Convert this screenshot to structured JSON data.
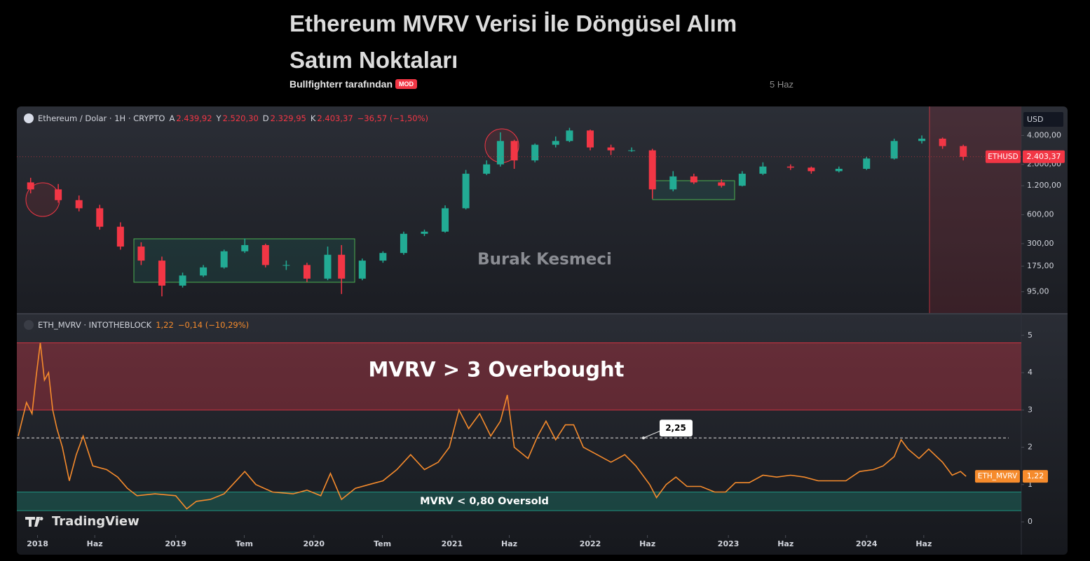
{
  "header": {
    "title": "Ethereum MVRV Verisi İle Döngüsel Alım Satım Noktaları",
    "author": "Bullfighterr tarafından",
    "badge": "MOD",
    "date": "5 Haz"
  },
  "branding": "TradingView",
  "chart_data": [
    {
      "type": "candlestick",
      "watermark": "Burak Kesmeci",
      "currency": "USD",
      "log": true,
      "up_color": "#22ab94",
      "down_color": "#f23645",
      "legend": {
        "symbol": "Ethereum / Dolar · 1H · CRYPTO",
        "items": [
          {
            "key": "A",
            "value": "2.439,92"
          },
          {
            "key": "Y",
            "value": "2.520,30"
          },
          {
            "key": "D",
            "value": "2.329,95"
          },
          {
            "key": "K",
            "value": "2.403,37"
          }
        ],
        "change": "−36,57 (−1,50%)"
      },
      "price_tag": {
        "name": "ETHUSD",
        "value": 2403.37,
        "label": "2.403,37"
      },
      "ylim": [
        57,
        8000
      ],
      "yticks": [
        {
          "value": 4000,
          "label": "4.000,00"
        },
        {
          "value": 2000,
          "label": "2.000,00"
        },
        {
          "value": 1200,
          "label": "1.200,00"
        },
        {
          "value": 600,
          "label": "600,00"
        },
        {
          "value": 300,
          "label": "300,00"
        },
        {
          "value": 175,
          "label": "175,00"
        },
        {
          "value": 95,
          "label": "95,00"
        }
      ],
      "x": [
        2017.95,
        2018.15,
        2018.3,
        2018.45,
        2018.6,
        2018.75,
        2018.9,
        2019.05,
        2019.2,
        2019.35,
        2019.5,
        2019.65,
        2019.8,
        2019.95,
        2020.1,
        2020.2,
        2020.35,
        2020.5,
        2020.65,
        2020.8,
        2020.95,
        2021.1,
        2021.25,
        2021.35,
        2021.45,
        2021.6,
        2021.75,
        2021.85,
        2022.0,
        2022.15,
        2022.3,
        2022.45,
        2022.6,
        2022.75,
        2022.95,
        2023.1,
        2023.25,
        2023.45,
        2023.6,
        2023.8,
        2024.0,
        2024.2,
        2024.4,
        2024.55,
        2024.7
      ],
      "open": [
        1300,
        1100,
        850,
        700,
        450,
        280,
        200,
        110,
        140,
        170,
        250,
        290,
        180,
        180,
        130,
        230,
        130,
        200,
        240,
        380,
        400,
        700,
        1600,
        2000,
        3500,
        2200,
        3200,
        3500,
        4500,
        3000,
        2800,
        2800,
        1100,
        1500,
        1300,
        1200,
        1600,
        1900,
        1850,
        1700,
        1800,
        2300,
        3500,
        3700,
        3100
      ],
      "high": [
        1450,
        1250,
        950,
        760,
        500,
        310,
        220,
        150,
        180,
        260,
        340,
        300,
        200,
        190,
        280,
        290,
        210,
        250,
        400,
        420,
        750,
        1750,
        2200,
        4300,
        3600,
        3300,
        3900,
        4800,
        4600,
        3200,
        3000,
        2900,
        1700,
        1600,
        1400,
        1700,
        2100,
        2000,
        1900,
        1900,
        2400,
        3700,
        4000,
        3800,
        3200
      ],
      "low": [
        1000,
        800,
        650,
        420,
        260,
        180,
        85,
        105,
        135,
        165,
        240,
        170,
        160,
        120,
        125,
        90,
        125,
        190,
        230,
        360,
        390,
        680,
        1550,
        1900,
        1800,
        2100,
        3000,
        3400,
        2800,
        2500,
        2700,
        880,
        1050,
        1250,
        1150,
        1180,
        1550,
        1750,
        1600,
        1650,
        1750,
        2250,
        3300,
        2900,
        2200
      ],
      "close": [
        1100,
        850,
        700,
        450,
        280,
        200,
        110,
        140,
        170,
        250,
        290,
        180,
        180,
        130,
        230,
        130,
        200,
        240,
        380,
        400,
        700,
        1600,
        2000,
        3500,
        2200,
        3200,
        3500,
        4500,
        3000,
        2800,
        2800,
        1100,
        1500,
        1300,
        1200,
        1600,
        1900,
        1850,
        1700,
        1800,
        2300,
        3500,
        3700,
        3100,
        2400
      ]
    },
    {
      "type": "line",
      "legend": {
        "symbol": "ETH_MVRV · INTOTHEBLOCK",
        "value": "1,22",
        "change": "−0,14 (−10,29%)"
      },
      "xlim": [
        2017.85,
        2025.12
      ],
      "xticks": [
        {
          "value": 2018.0,
          "label": "2018"
        },
        {
          "value": 2018.414,
          "label": "Haz"
        },
        {
          "value": 2019.0,
          "label": "2019"
        },
        {
          "value": 2019.496,
          "label": "Tem"
        },
        {
          "value": 2020.0,
          "label": "2020"
        },
        {
          "value": 2020.496,
          "label": "Tem"
        },
        {
          "value": 2021.0,
          "label": "2021"
        },
        {
          "value": 2021.414,
          "label": "Haz"
        },
        {
          "value": 2022.0,
          "label": "2022"
        },
        {
          "value": 2022.414,
          "label": "Haz"
        },
        {
          "value": 2023.0,
          "label": "2023"
        },
        {
          "value": 2023.414,
          "label": "Haz"
        },
        {
          "value": 2024.0,
          "label": "2024"
        },
        {
          "value": 2024.414,
          "label": "Haz"
        }
      ],
      "ylim": [
        -0.28,
        5.56
      ],
      "yticks": [
        0,
        1,
        2,
        3,
        4,
        5
      ],
      "bands": [
        {
          "from": 3,
          "to": 4.8,
          "label": "MVRV > 3 Overbought",
          "color": "#f23645"
        },
        {
          "from": 0.3,
          "to": 0.8,
          "label": "MVRV < 0,80 Oversold",
          "color": "#22ab94"
        }
      ],
      "hline": {
        "value": 2.25,
        "label": "2,25"
      },
      "series": [
        {
          "name": "ETH_MVRV",
          "color": "#f68b2c",
          "value_tag": {
            "value": 1.22,
            "label": "1,22"
          },
          "x": [
            2017.86,
            2017.92,
            2017.96,
            2017.99,
            2018.02,
            2018.05,
            2018.08,
            2018.11,
            2018.14,
            2018.18,
            2018.23,
            2018.28,
            2018.33,
            2018.4,
            2018.5,
            2018.58,
            2018.65,
            2018.72,
            2018.85,
            2019.0,
            2019.08,
            2019.15,
            2019.25,
            2019.35,
            2019.45,
            2019.5,
            2019.58,
            2019.7,
            2019.85,
            2019.95,
            2020.05,
            2020.12,
            2020.2,
            2020.3,
            2020.4,
            2020.5,
            2020.6,
            2020.7,
            2020.8,
            2020.9,
            2020.98,
            2021.05,
            2021.12,
            2021.2,
            2021.28,
            2021.35,
            2021.4,
            2021.45,
            2021.55,
            2021.62,
            2021.68,
            2021.75,
            2021.82,
            2021.88,
            2021.95,
            2022.05,
            2022.15,
            2022.25,
            2022.33,
            2022.43,
            2022.48,
            2022.55,
            2022.62,
            2022.7,
            2022.8,
            2022.9,
            2022.98,
            2023.05,
            2023.15,
            2023.25,
            2023.35,
            2023.45,
            2023.55,
            2023.65,
            2023.75,
            2023.85,
            2023.95,
            2024.05,
            2024.12,
            2024.2,
            2024.25,
            2024.3,
            2024.38,
            2024.45,
            2024.55,
            2024.62,
            2024.68,
            2024.72
          ],
          "values": [
            2.3,
            3.2,
            2.9,
            3.9,
            4.8,
            3.8,
            4.0,
            3.0,
            2.5,
            2.0,
            1.1,
            1.8,
            2.3,
            1.5,
            1.4,
            1.2,
            0.9,
            0.7,
            0.75,
            0.7,
            0.35,
            0.55,
            0.6,
            0.75,
            1.15,
            1.35,
            1.0,
            0.8,
            0.75,
            0.85,
            0.7,
            1.3,
            0.6,
            0.9,
            1.0,
            1.1,
            1.4,
            1.8,
            1.4,
            1.6,
            2.0,
            3.0,
            2.5,
            2.9,
            2.3,
            2.7,
            3.4,
            2.0,
            1.7,
            2.3,
            2.7,
            2.2,
            2.6,
            2.6,
            2.0,
            1.8,
            1.6,
            1.8,
            1.5,
            1.0,
            0.65,
            1.0,
            1.2,
            0.95,
            0.95,
            0.8,
            0.8,
            1.05,
            1.05,
            1.25,
            1.2,
            1.25,
            1.2,
            1.1,
            1.1,
            1.1,
            1.35,
            1.4,
            1.5,
            1.75,
            2.2,
            1.95,
            1.7,
            1.95,
            1.6,
            1.25,
            1.35,
            1.22
          ]
        }
      ]
    }
  ]
}
